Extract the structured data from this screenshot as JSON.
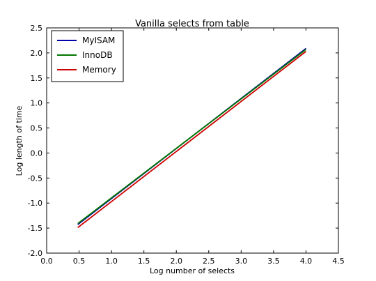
{
  "chart_data": {
    "type": "line",
    "title": "Vanilla selects from table",
    "xlabel": "Log number of selects",
    "ylabel": "Log length of time",
    "xlim": [
      0.0,
      4.5
    ],
    "ylim": [
      -2.0,
      2.5
    ],
    "x_ticks": [
      "0.0",
      "0.5",
      "1.0",
      "1.5",
      "2.0",
      "2.5",
      "3.0",
      "3.5",
      "4.0",
      "4.5"
    ],
    "y_ticks": [
      "-2.0",
      "-1.5",
      "-1.0",
      "-0.5",
      "0.0",
      "0.5",
      "1.0",
      "1.5",
      "2.0",
      "2.5"
    ],
    "grid": false,
    "legend_position": "top-left",
    "series": [
      {
        "name": "MyISAM",
        "color": "#0000aa",
        "x": [
          0.48,
          4.0
        ],
        "y": [
          -1.43,
          2.09
        ]
      },
      {
        "name": "InnoDB",
        "color": "#007700",
        "x": [
          0.48,
          4.0
        ],
        "y": [
          -1.41,
          2.07
        ]
      },
      {
        "name": "Memory",
        "color": "#cc0000",
        "x": [
          0.48,
          4.0
        ],
        "y": [
          -1.49,
          2.03
        ]
      }
    ]
  }
}
